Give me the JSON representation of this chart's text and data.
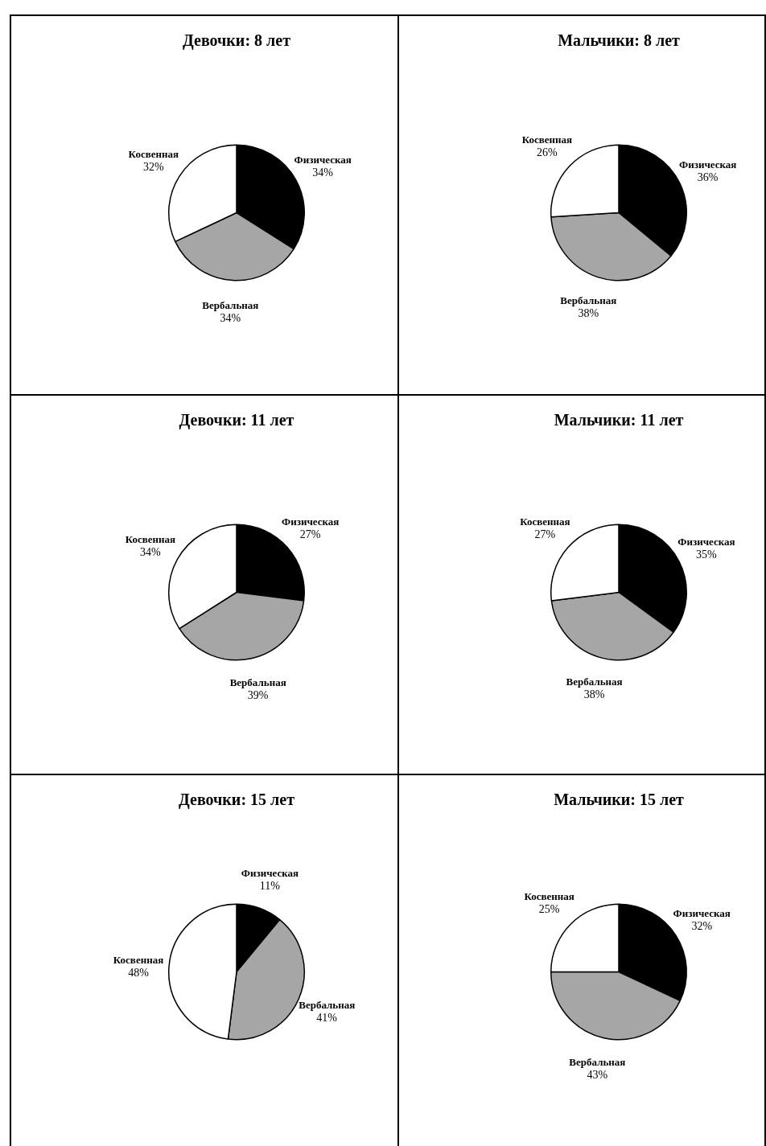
{
  "chart_data": [
    {
      "type": "pie",
      "title": "Девочки: 8 лет",
      "categories": [
        "Физическая",
        "Вербальная",
        "Косвенная"
      ],
      "values": [
        34,
        34,
        32
      ],
      "value_labels": [
        "34%",
        "34%",
        "32%"
      ],
      "colors": [
        "#000000",
        "#a6a6a6",
        "#ffffff"
      ],
      "legend": false
    },
    {
      "type": "pie",
      "title": "Мальчики: 8 лет",
      "categories": [
        "Физическая",
        "Вербальная",
        "Косвенная"
      ],
      "values": [
        36,
        38,
        26
      ],
      "value_labels": [
        "36%",
        "38%",
        "26%"
      ],
      "colors": [
        "#000000",
        "#a6a6a6",
        "#ffffff"
      ],
      "legend": false
    },
    {
      "type": "pie",
      "title": "Девочки: 11 лет",
      "categories": [
        "Физическая",
        "Вербальная",
        "Косвенная"
      ],
      "values": [
        27,
        39,
        34
      ],
      "value_labels": [
        "27%",
        "39%",
        "34%"
      ],
      "colors": [
        "#000000",
        "#a6a6a6",
        "#ffffff"
      ],
      "legend": false
    },
    {
      "type": "pie",
      "title": "Мальчики: 11 лет",
      "categories": [
        "Физическая",
        "Вербальная",
        "Косвенная"
      ],
      "values": [
        35,
        38,
        27
      ],
      "value_labels": [
        "35%",
        "38%",
        "27%"
      ],
      "colors": [
        "#000000",
        "#a6a6a6",
        "#ffffff"
      ],
      "legend": false
    },
    {
      "type": "pie",
      "title": "Девочки: 15 лет",
      "categories": [
        "Физическая",
        "Вербальная",
        "Косвенная"
      ],
      "values": [
        11,
        41,
        48
      ],
      "value_labels": [
        "11%",
        "41%",
        "48%"
      ],
      "colors": [
        "#000000",
        "#a6a6a6",
        "#ffffff"
      ],
      "legend": false
    },
    {
      "type": "pie",
      "title": "Мальчики: 15 лет",
      "categories": [
        "Физическая",
        "Вербальная",
        "Косвенная"
      ],
      "values": [
        32,
        43,
        25
      ],
      "value_labels": [
        "32%",
        "43%",
        "25%"
      ],
      "colors": [
        "#000000",
        "#a6a6a6",
        "#ffffff"
      ],
      "legend": false
    }
  ]
}
